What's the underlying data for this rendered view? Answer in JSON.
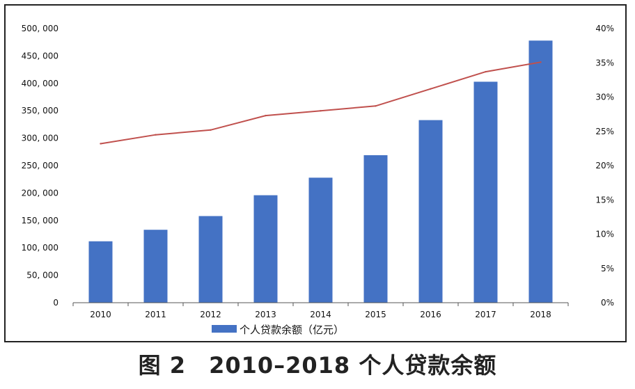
{
  "chart_data": {
    "type": "bar",
    "categories": [
      "2010",
      "2011",
      "2012",
      "2013",
      "2014",
      "2015",
      "2016",
      "2017",
      "2018"
    ],
    "series": [
      {
        "name": "个人贷款余额（亿元）",
        "type": "bar",
        "axis": "left",
        "values": [
          112000,
          133000,
          158000,
          196000,
          228000,
          269000,
          333000,
          403000,
          478000
        ]
      },
      {
        "type": "line",
        "axis": "right",
        "values": [
          23.2,
          24.5,
          25.2,
          27.3,
          28.0,
          28.7,
          31.2,
          33.7,
          35.1
        ]
      }
    ],
    "y_left": {
      "ylim": [
        0,
        500000
      ],
      "ticks": [
        "0",
        "50, 000",
        "100, 000",
        "150, 000",
        "200, 000",
        "250, 000",
        "300, 000",
        "350, 000",
        "400, 000",
        "450, 000",
        "500, 000"
      ]
    },
    "y_right": {
      "ylim": [
        0,
        40
      ],
      "ticks": [
        "0%",
        "5%",
        "10%",
        "15%",
        "20%",
        "25%",
        "30%",
        "35%",
        "40%"
      ]
    },
    "legend": {
      "placement": "bottom",
      "label": "个人贷款余额（亿元）"
    },
    "colors": {
      "bar": "#4472C4",
      "line": "#C0504D"
    },
    "grid": false
  },
  "caption": "图 2　2010–2018 个人贷款余额"
}
